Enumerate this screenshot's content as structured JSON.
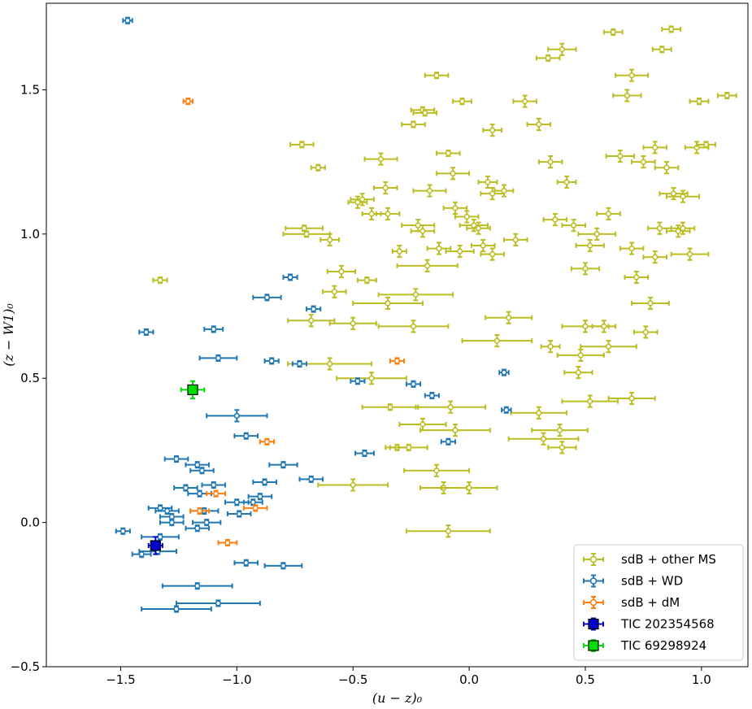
{
  "chart_data": {
    "type": "scatter",
    "title": "",
    "xlabel": "(u − z)₀",
    "ylabel": "(z − W1)₀",
    "xlim": [
      -1.82,
      1.2
    ],
    "ylim": [
      -0.5,
      1.8
    ],
    "xticks": [
      {
        "value": -1.5,
        "label": "−1.5"
      },
      {
        "value": -1.0,
        "label": "−1.0"
      },
      {
        "value": -0.5,
        "label": "−0.5"
      },
      {
        "value": 0.0,
        "label": "0.0"
      },
      {
        "value": 0.5,
        "label": "0.5"
      },
      {
        "value": 1.0,
        "label": "1.0"
      }
    ],
    "yticks": [
      {
        "value": -0.5,
        "label": "−0.5"
      },
      {
        "value": 0.0,
        "label": "0.0"
      },
      {
        "value": 0.5,
        "label": "0.5"
      },
      {
        "value": 1.0,
        "label": "1.0"
      },
      {
        "value": 1.5,
        "label": "1.5"
      }
    ],
    "legend_position": "bottom-right",
    "series": [
      {
        "name": "sdB + other MS",
        "color": "#bcbd22",
        "marker": "circle",
        "points": [
          [
            -1.33,
            0.84,
            0.03,
            0.01
          ],
          [
            -0.72,
            1.31,
            0.05,
            0.01
          ],
          [
            -0.65,
            1.23,
            0.03,
            0.01
          ],
          [
            -0.71,
            1.02,
            0.08,
            0.01
          ],
          [
            -0.7,
            1.0,
            0.1,
            0.01
          ],
          [
            -0.6,
            0.98,
            0.04,
            0.02
          ],
          [
            -0.55,
            0.87,
            0.06,
            0.02
          ],
          [
            -0.58,
            0.8,
            0.05,
            0.02
          ],
          [
            -0.48,
            1.11,
            0.04,
            0.02
          ],
          [
            -0.46,
            1.12,
            0.05,
            0.02
          ],
          [
            -0.38,
            1.26,
            0.07,
            0.02
          ],
          [
            -0.36,
            1.16,
            0.05,
            0.02
          ],
          [
            -0.35,
            1.07,
            0.05,
            0.02
          ],
          [
            -0.42,
            1.07,
            0.04,
            0.02
          ],
          [
            -0.44,
            0.84,
            0.04,
            0.01
          ],
          [
            -0.3,
            0.94,
            0.03,
            0.02
          ],
          [
            -0.68,
            0.7,
            0.1,
            0.02
          ],
          [
            -0.6,
            0.55,
            0.18,
            0.02
          ],
          [
            -0.5,
            0.69,
            0.1,
            0.02
          ],
          [
            -0.35,
            0.76,
            0.15,
            0.02
          ],
          [
            -0.34,
            0.4,
            0.12,
            0.01
          ],
          [
            -0.31,
            0.26,
            0.05,
            0.01
          ],
          [
            -0.26,
            0.26,
            0.08,
            0.01
          ],
          [
            -0.22,
            1.03,
            0.07,
            0.02
          ],
          [
            -0.24,
            1.38,
            0.05,
            0.01
          ],
          [
            -0.2,
            1.43,
            0.05,
            0.01
          ],
          [
            -0.19,
            1.42,
            0.05,
            0.01
          ],
          [
            -0.14,
            1.55,
            0.05,
            0.01
          ],
          [
            -0.17,
            1.15,
            0.07,
            0.02
          ],
          [
            -0.2,
            1.01,
            0.05,
            0.02
          ],
          [
            -0.18,
            0.89,
            0.13,
            0.02
          ],
          [
            -0.13,
            0.95,
            0.05,
            0.02
          ],
          [
            -0.09,
            1.28,
            0.05,
            0.01
          ],
          [
            -0.07,
            1.21,
            0.07,
            0.02
          ],
          [
            -0.06,
            1.09,
            0.05,
            0.02
          ],
          [
            -0.04,
            0.94,
            0.06,
            0.02
          ],
          [
            -0.01,
            1.06,
            0.05,
            0.02
          ],
          [
            0.02,
            1.03,
            0.06,
            0.02
          ],
          [
            0.04,
            1.02,
            0.05,
            0.02
          ],
          [
            0.06,
            0.96,
            0.05,
            0.02
          ],
          [
            0.1,
            0.93,
            0.05,
            0.02
          ],
          [
            -0.03,
            1.46,
            0.04,
            0.01
          ],
          [
            0.1,
            1.36,
            0.04,
            0.02
          ],
          [
            0.08,
            1.18,
            0.04,
            0.02
          ],
          [
            0.1,
            1.14,
            0.05,
            0.02
          ],
          [
            0.15,
            1.15,
            0.04,
            0.02
          ],
          [
            0.2,
            0.98,
            0.05,
            0.02
          ],
          [
            0.24,
            1.46,
            0.05,
            0.02
          ],
          [
            0.3,
            1.38,
            0.05,
            0.02
          ],
          [
            0.34,
            1.61,
            0.05,
            0.01
          ],
          [
            0.4,
            1.64,
            0.06,
            0.02
          ],
          [
            0.35,
            1.25,
            0.05,
            0.02
          ],
          [
            0.37,
            1.05,
            0.05,
            0.02
          ],
          [
            0.42,
            1.18,
            0.04,
            0.02
          ],
          [
            0.45,
            1.03,
            0.05,
            0.02
          ],
          [
            0.52,
            0.96,
            0.06,
            0.02
          ],
          [
            0.55,
            1.0,
            0.08,
            0.02
          ],
          [
            0.5,
            0.88,
            0.06,
            0.02
          ],
          [
            0.62,
            1.7,
            0.04,
            0.01
          ],
          [
            0.65,
            1.27,
            0.06,
            0.02
          ],
          [
            0.68,
            1.48,
            0.06,
            0.02
          ],
          [
            0.7,
            1.55,
            0.07,
            0.02
          ],
          [
            0.75,
            1.25,
            0.05,
            0.02
          ],
          [
            0.8,
            1.3,
            0.05,
            0.02
          ],
          [
            0.83,
            1.64,
            0.04,
            0.01
          ],
          [
            0.87,
            1.71,
            0.04,
            0.01
          ],
          [
            0.85,
            1.23,
            0.05,
            0.02
          ],
          [
            0.88,
            1.14,
            0.06,
            0.02
          ],
          [
            0.92,
            1.13,
            0.07,
            0.02
          ],
          [
            0.98,
            1.3,
            0.05,
            0.02
          ],
          [
            1.02,
            1.31,
            0.04,
            0.01
          ],
          [
            0.99,
            1.46,
            0.04,
            0.01
          ],
          [
            1.11,
            1.48,
            0.04,
            0.01
          ],
          [
            0.6,
            1.07,
            0.05,
            0.02
          ],
          [
            0.7,
            0.95,
            0.05,
            0.02
          ],
          [
            0.82,
            1.02,
            0.05,
            0.02
          ],
          [
            0.92,
            1.02,
            0.05,
            0.02
          ],
          [
            -0.24,
            0.68,
            0.15,
            0.02
          ],
          [
            -0.23,
            0.79,
            0.16,
            0.02
          ],
          [
            -0.2,
            0.34,
            0.1,
            0.02
          ],
          [
            -0.14,
            0.18,
            0.14,
            0.02
          ],
          [
            -0.11,
            0.12,
            0.1,
            0.02
          ],
          [
            -0.09,
            -0.03,
            0.18,
            0.02
          ],
          [
            -0.08,
            0.4,
            0.15,
            0.02
          ],
          [
            -0.06,
            0.32,
            0.15,
            0.02
          ],
          [
            0.0,
            0.12,
            0.12,
            0.02
          ],
          [
            -0.5,
            0.13,
            0.15,
            0.02
          ],
          [
            -0.42,
            0.5,
            0.15,
            0.02
          ],
          [
            0.12,
            0.63,
            0.15,
            0.02
          ],
          [
            0.17,
            0.71,
            0.1,
            0.02
          ],
          [
            0.3,
            0.38,
            0.12,
            0.02
          ],
          [
            0.32,
            0.29,
            0.15,
            0.02
          ],
          [
            0.39,
            0.32,
            0.12,
            0.02
          ],
          [
            0.4,
            0.26,
            0.06,
            0.02
          ],
          [
            0.35,
            0.61,
            0.04,
            0.02
          ],
          [
            0.47,
            0.52,
            0.06,
            0.02
          ],
          [
            0.48,
            0.58,
            0.1,
            0.02
          ],
          [
            0.5,
            0.68,
            0.1,
            0.02
          ],
          [
            0.52,
            0.42,
            0.12,
            0.02
          ],
          [
            0.58,
            0.68,
            0.05,
            0.02
          ],
          [
            0.6,
            0.61,
            0.12,
            0.02
          ],
          [
            0.7,
            0.43,
            0.1,
            0.02
          ],
          [
            0.72,
            0.85,
            0.05,
            0.02
          ],
          [
            0.76,
            0.66,
            0.05,
            0.02
          ],
          [
            0.78,
            0.76,
            0.08,
            0.02
          ],
          [
            0.8,
            0.92,
            0.05,
            0.02
          ],
          [
            0.9,
            1.01,
            0.05,
            0.02
          ],
          [
            0.95,
            0.93,
            0.08,
            0.02
          ]
        ]
      },
      {
        "name": "sdB + WD",
        "color": "#1f77b4",
        "marker": "circle",
        "points": [
          [
            -1.47,
            1.74,
            0.02,
            0.01
          ],
          [
            -1.39,
            0.66,
            0.03,
            0.01
          ],
          [
            -1.1,
            0.67,
            0.04,
            0.01
          ],
          [
            -1.08,
            0.57,
            0.08,
            0.01
          ],
          [
            -0.85,
            0.56,
            0.03,
            0.01
          ],
          [
            -0.87,
            0.78,
            0.06,
            0.01
          ],
          [
            -0.77,
            0.85,
            0.03,
            0.01
          ],
          [
            -0.73,
            0.55,
            0.03,
            0.01
          ],
          [
            -0.67,
            0.74,
            0.03,
            0.01
          ],
          [
            -0.48,
            0.49,
            0.03,
            0.01
          ],
          [
            -0.45,
            0.24,
            0.04,
            0.01
          ],
          [
            -0.24,
            0.48,
            0.03,
            0.01
          ],
          [
            -0.16,
            0.44,
            0.03,
            0.01
          ],
          [
            -0.09,
            0.28,
            0.03,
            0.01
          ],
          [
            0.15,
            0.52,
            0.02,
            0.01
          ],
          [
            0.16,
            0.39,
            0.02,
            0.01
          ],
          [
            -1.0,
            0.37,
            0.13,
            0.02
          ],
          [
            -0.96,
            0.3,
            0.05,
            0.01
          ],
          [
            -1.26,
            0.22,
            0.05,
            0.01
          ],
          [
            -1.17,
            0.2,
            0.05,
            0.01
          ],
          [
            -1.15,
            0.18,
            0.05,
            0.01
          ],
          [
            -1.22,
            0.12,
            0.05,
            0.01
          ],
          [
            -1.16,
            0.1,
            0.05,
            0.01
          ],
          [
            -1.14,
            0.04,
            0.06,
            0.01
          ],
          [
            -1.33,
            0.05,
            0.05,
            0.01
          ],
          [
            -1.28,
            0.0,
            0.05,
            0.01
          ],
          [
            -1.3,
            0.04,
            0.05,
            0.01
          ],
          [
            -1.49,
            -0.03,
            0.03,
            0.01
          ],
          [
            -1.41,
            -0.11,
            0.04,
            0.01
          ],
          [
            -1.34,
            -0.1,
            0.08,
            0.01
          ],
          [
            -1.26,
            -0.3,
            0.15,
            0.01
          ],
          [
            -1.17,
            -0.22,
            0.15,
            0.01
          ],
          [
            -1.08,
            -0.28,
            0.18,
            0.01
          ],
          [
            -1.17,
            -0.02,
            0.05,
            0.01
          ],
          [
            -1.1,
            0.13,
            0.05,
            0.01
          ],
          [
            -1.0,
            0.07,
            0.05,
            0.01
          ],
          [
            -0.96,
            -0.14,
            0.05,
            0.01
          ],
          [
            -0.9,
            0.09,
            0.05,
            0.01
          ],
          [
            -0.88,
            0.14,
            0.05,
            0.01
          ],
          [
            -0.8,
            -0.15,
            0.08,
            0.01
          ],
          [
            -0.8,
            0.2,
            0.06,
            0.01
          ],
          [
            -0.68,
            0.15,
            0.05,
            0.01
          ],
          [
            -0.99,
            0.03,
            0.05,
            0.01
          ],
          [
            -1.28,
            0.02,
            0.05,
            0.01
          ],
          [
            -1.13,
            0.0,
            0.06,
            0.01
          ],
          [
            -0.93,
            0.07,
            0.04,
            0.01
          ],
          [
            -1.33,
            -0.05,
            0.08,
            0.01
          ]
        ]
      },
      {
        "name": "sdB + dM",
        "color": "#ff7f0e",
        "marker": "circle",
        "points": [
          [
            -1.21,
            1.46,
            0.02,
            0.01
          ],
          [
            -0.31,
            0.56,
            0.03,
            0.01
          ],
          [
            -0.87,
            0.28,
            0.03,
            0.01
          ],
          [
            -1.09,
            0.1,
            0.04,
            0.01
          ],
          [
            -1.16,
            0.04,
            0.04,
            0.01
          ],
          [
            -1.04,
            -0.07,
            0.04,
            0.01
          ],
          [
            -0.92,
            0.05,
            0.05,
            0.01
          ]
        ]
      },
      {
        "name": "TIC 202354568",
        "color": "#0000cc",
        "marker": "square",
        "points": [
          [
            -1.35,
            -0.08,
            0.03,
            0.03
          ]
        ]
      },
      {
        "name": "TIC 69298924",
        "color": "#00dd00",
        "marker": "square",
        "points": [
          [
            -1.19,
            0.46,
            0.05,
            0.03
          ]
        ]
      }
    ]
  }
}
